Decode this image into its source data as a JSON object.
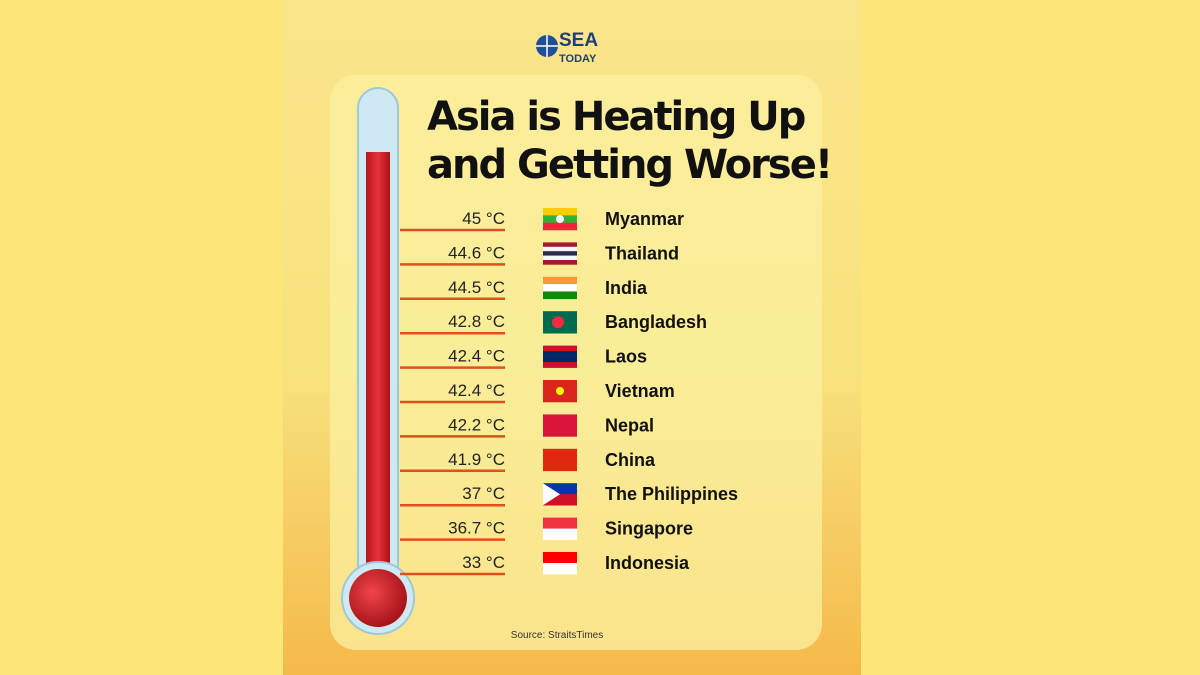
{
  "logo": {
    "line1": "SEA",
    "line2": "TODAY"
  },
  "title": {
    "line1": "Asia is Heating Up",
    "line2": "and Getting Worse!"
  },
  "rows": [
    {
      "temperature": "45 °C",
      "country": "Myanmar"
    },
    {
      "temperature": "44.6 °C",
      "country": "Thailand"
    },
    {
      "temperature": "44.5 °C",
      "country": "India"
    },
    {
      "temperature": "42.8 °C",
      "country": "Bangladesh"
    },
    {
      "temperature": "42.4 °C",
      "country": "Laos"
    },
    {
      "temperature": "42.4 °C",
      "country": "Vietnam"
    },
    {
      "temperature": "42.2 °C",
      "country": "Nepal"
    },
    {
      "temperature": "41.9 °C",
      "country": "China"
    },
    {
      "temperature": "37 °C",
      "country": "The Philippines"
    },
    {
      "temperature": "36.7 °C",
      "country": "Singapore"
    },
    {
      "temperature": "33 °C",
      "country": "Indonesia"
    }
  ],
  "source": "Source: StraitsTimes"
}
